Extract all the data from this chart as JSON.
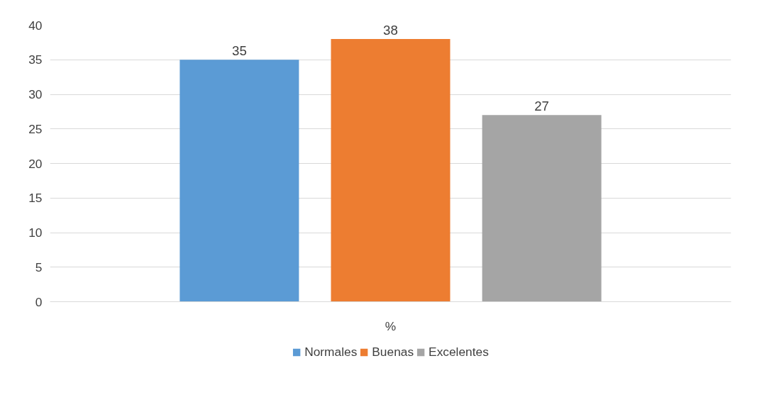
{
  "chart_data": {
    "type": "bar",
    "categories": [
      "%"
    ],
    "series": [
      {
        "name": "Normales",
        "color": "#5b9bd5",
        "values": [
          35
        ]
      },
      {
        "name": "Buenas",
        "color": "#ed7d31",
        "values": [
          38
        ]
      },
      {
        "name": "Excelentes",
        "color": "#a5a5a5",
        "values": [
          27
        ]
      }
    ],
    "ylim": [
      0,
      40
    ],
    "yticks": [
      0,
      5,
      10,
      15,
      20,
      25,
      30,
      35,
      40
    ],
    "grid": "y",
    "legend": "bottom",
    "data_labels": true
  }
}
